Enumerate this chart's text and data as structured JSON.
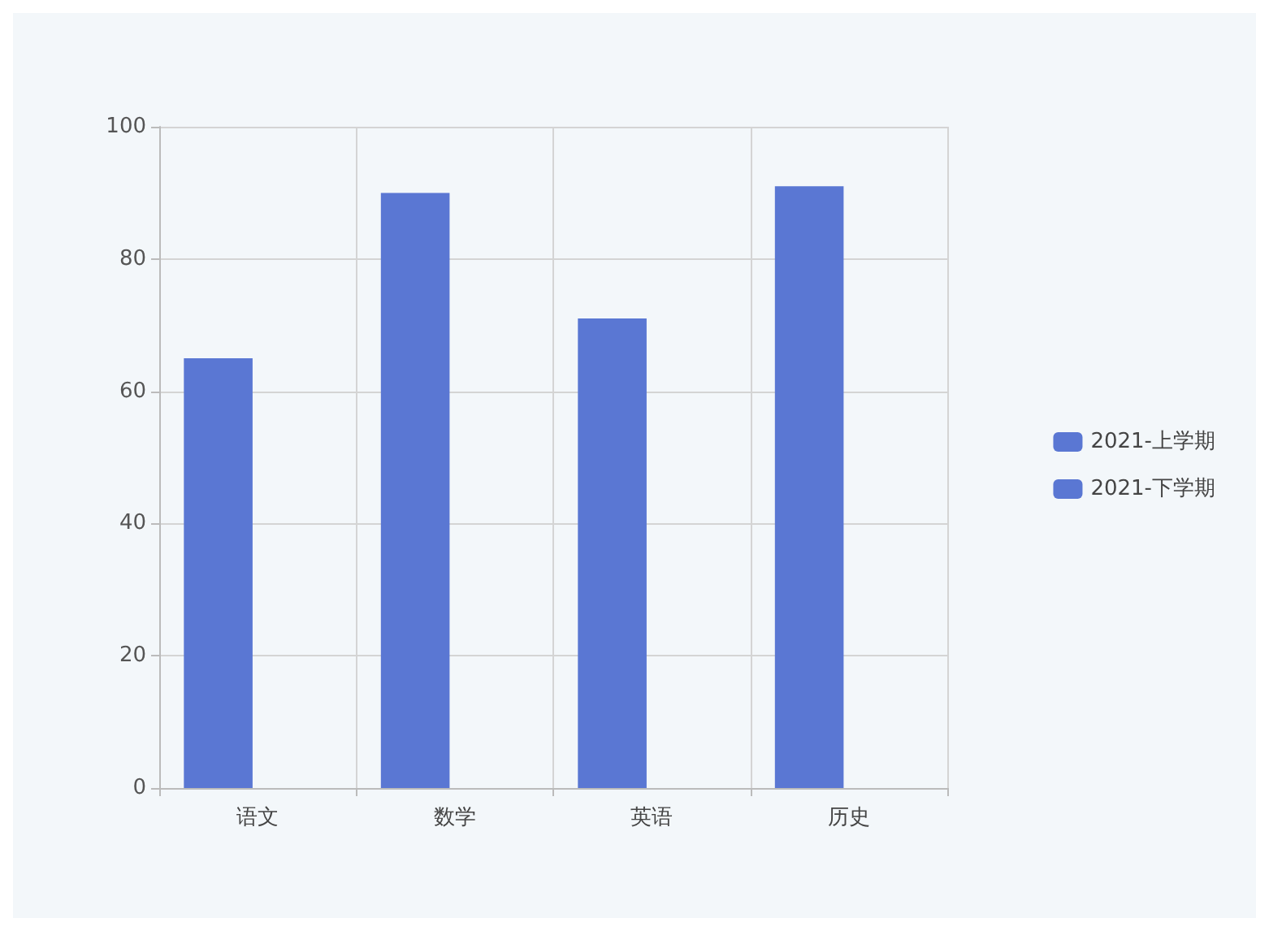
{
  "chart_data": {
    "type": "bar",
    "categories": [
      "语文",
      "数学",
      "英语",
      "历史"
    ],
    "series": [
      {
        "name": "2021-上学期",
        "color": "#5a77d3",
        "values": [
          65,
          90,
          71,
          91
        ]
      },
      {
        "name": "2021-下学期",
        "color": "#5a77d3",
        "values": [
          null,
          null,
          null,
          null
        ]
      }
    ],
    "ylim": [
      0,
      100
    ],
    "yticks": [
      0,
      20,
      40,
      60,
      80,
      100
    ],
    "grid": true,
    "legend": "right"
  }
}
